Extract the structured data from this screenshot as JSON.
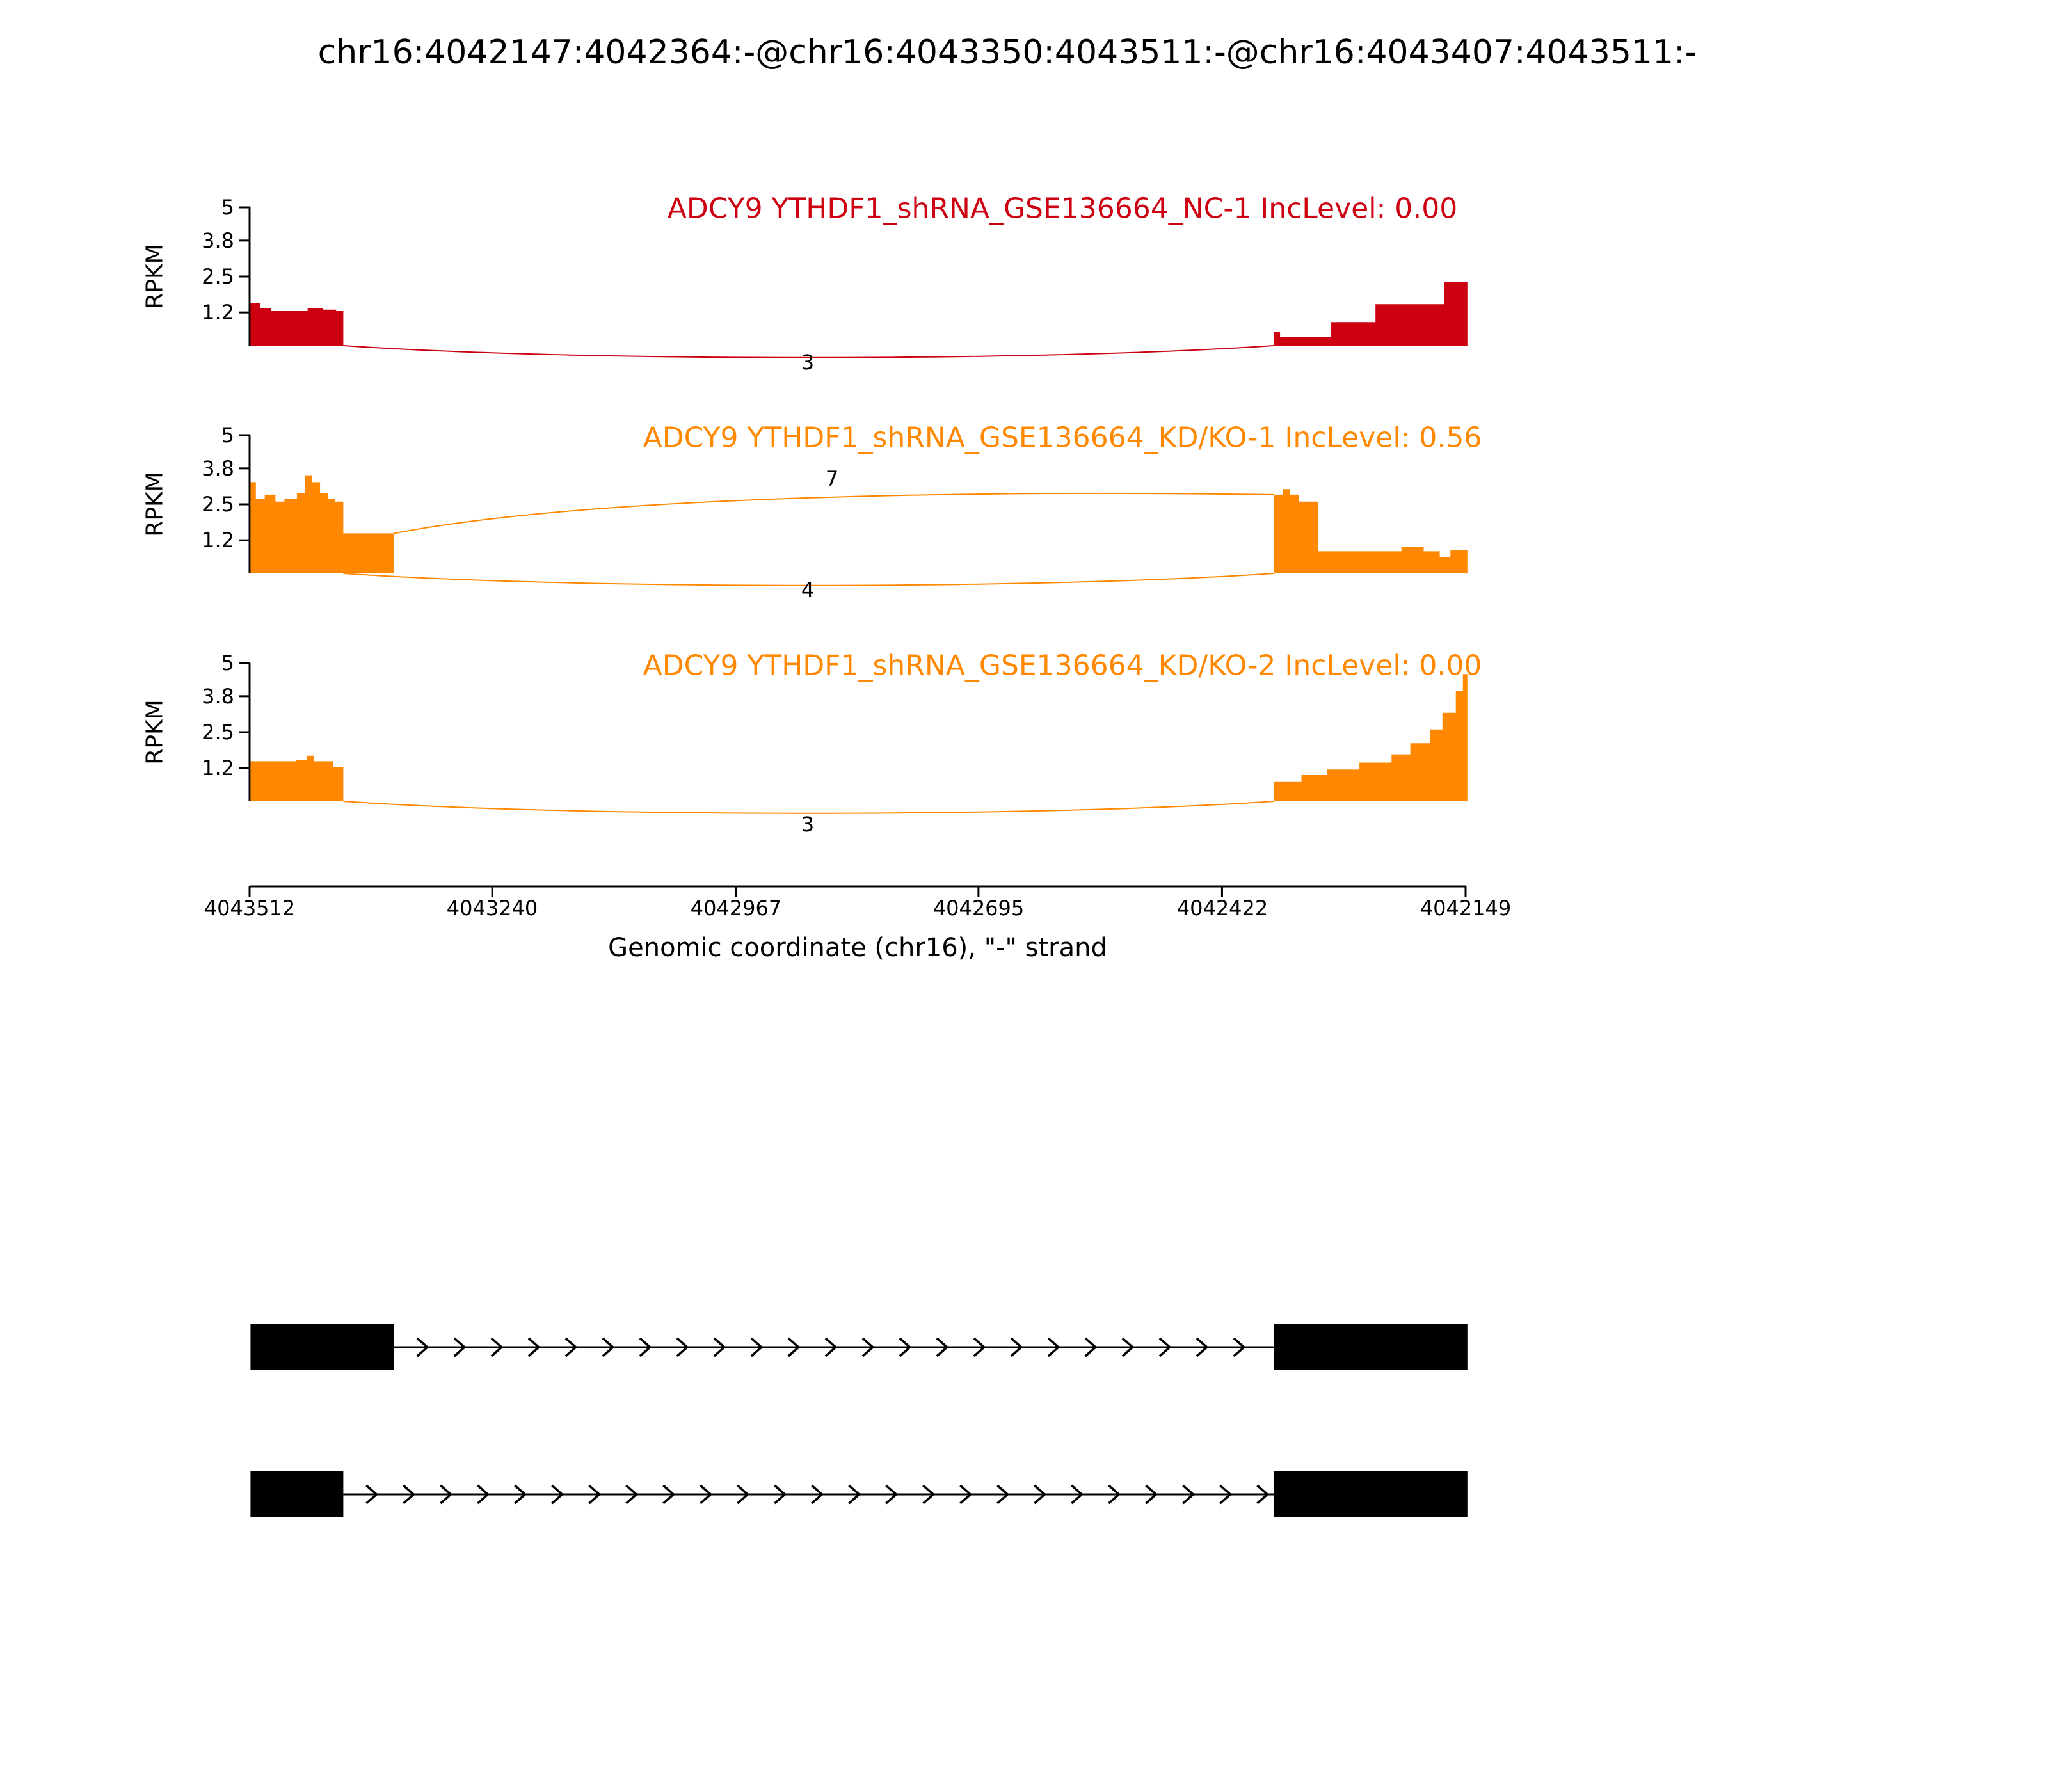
{
  "chart_data": {
    "type": "area",
    "title": "chr16:4042147:4042364:-@chr16:4043350:4043511:-@chr16:4043407:4043511:-",
    "x_axis": {
      "label": "Genomic coordinate (chr16), \"-\" strand",
      "ticks": [
        4043512,
        4043240,
        4042967,
        4042695,
        4042422,
        4042149
      ],
      "max": 4043512,
      "min": 4042149,
      "orientation": "reversed (minus strand, coordinates decrease left to right)"
    },
    "y_axis": {
      "label": "RPKM",
      "ticks": [
        5,
        3.8,
        2.5,
        1.2
      ],
      "max": 5,
      "min": 0
    },
    "tracks": [
      {
        "label": "ADCY9 YTHDF1_shRNA_GSE136664_NC-1 IncLevel: 0.00",
        "color": "#CC0011",
        "coverage_regions": [
          [
            [
              4043511,
              1.55
            ],
            [
              4043500,
              1.35
            ],
            [
              4043488,
              1.25
            ],
            [
              4043447,
              1.35
            ],
            [
              4043430,
              1.3
            ],
            [
              4043415,
              1.25
            ],
            [
              4043407,
              0
            ]
          ],
          [
            [
              4042364,
              0.5
            ],
            [
              4042357,
              0.3
            ],
            [
              4042300,
              0.85
            ],
            [
              4042250,
              1.5
            ],
            [
              4042173,
              2.3
            ],
            [
              4042147,
              0
            ]
          ]
        ],
        "junctions": [
          {
            "from": 4043407,
            "to": 4042364,
            "reads": 3,
            "side": "below",
            "from_h": 0,
            "to_h": 0
          }
        ]
      },
      {
        "label": "ADCY9 YTHDF1_shRNA_GSE136664_KD/KO-1 IncLevel: 0.56",
        "color": "#FF8800",
        "coverage_regions": [
          [
            [
              4043511,
              3.3
            ],
            [
              4043505,
              2.7
            ],
            [
              4043495,
              2.85
            ],
            [
              4043483,
              2.6
            ],
            [
              4043473,
              2.7
            ],
            [
              4043459,
              2.9
            ],
            [
              4043450,
              3.55
            ],
            [
              4043442,
              3.3
            ],
            [
              4043433,
              2.9
            ],
            [
              4043424,
              2.7
            ],
            [
              4043416,
              2.6
            ],
            [
              4043407,
              1.45
            ],
            [
              4043350,
              0
            ]
          ],
          [
            [
              4042364,
              2.85
            ],
            [
              4042354,
              3.05
            ],
            [
              4042346,
              2.85
            ],
            [
              4042336,
              2.6
            ],
            [
              4042314,
              0.8
            ],
            [
              4042221,
              0.95
            ],
            [
              4042196,
              0.8
            ],
            [
              4042178,
              0.6
            ],
            [
              4042166,
              0.85
            ],
            [
              4042147,
              0
            ]
          ]
        ],
        "junctions": [
          {
            "from": 4043350,
            "to": 4042364,
            "reads": 7,
            "side": "above",
            "from_h": 1.45,
            "to_h": 2.85
          },
          {
            "from": 4043407,
            "to": 4042364,
            "reads": 4,
            "side": "below",
            "from_h": 0,
            "to_h": 0
          }
        ]
      },
      {
        "label": "ADCY9 YTHDF1_shRNA_GSE136664_KD/KO-2 IncLevel: 0.00",
        "color": "#FF8800",
        "coverage_regions": [
          [
            [
              4043511,
              1.45
            ],
            [
              4043460,
              1.5
            ],
            [
              4043448,
              1.65
            ],
            [
              4043440,
              1.45
            ],
            [
              4043418,
              1.25
            ],
            [
              4043407,
              0
            ]
          ],
          [
            [
              4042364,
              0.7
            ],
            [
              4042333,
              0.95
            ],
            [
              4042304,
              1.15
            ],
            [
              4042268,
              1.4
            ],
            [
              4042232,
              1.7
            ],
            [
              4042211,
              2.1
            ],
            [
              4042189,
              2.6
            ],
            [
              4042175,
              3.2
            ],
            [
              4042160,
              4.0
            ],
            [
              4042152,
              4.6
            ],
            [
              4042147,
              0
            ]
          ]
        ],
        "junctions": [
          {
            "from": 4043407,
            "to": 4042364,
            "reads": 3,
            "side": "below",
            "from_h": 0,
            "to_h": 0
          }
        ]
      }
    ],
    "isoforms": [
      {
        "exons": [
          [
            4043350,
            4043511
          ],
          [
            4042147,
            4042364
          ]
        ],
        "strand": "-"
      },
      {
        "exons": [
          [
            4043407,
            4043511
          ],
          [
            4042147,
            4042364
          ]
        ],
        "strand": "-"
      }
    ]
  }
}
